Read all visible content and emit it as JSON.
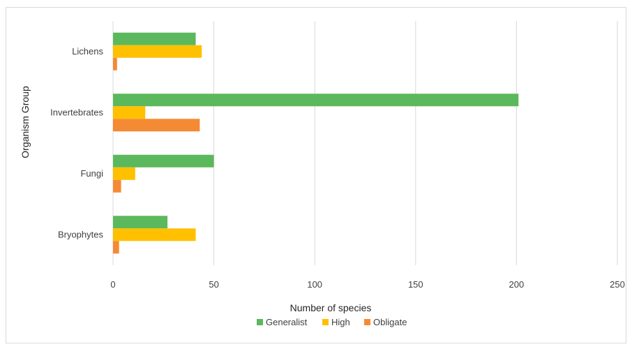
{
  "chart_data": {
    "type": "bar",
    "orientation": "horizontal",
    "categories": [
      "Bryophytes",
      "Fungi",
      "Invertebrates",
      "Lichens"
    ],
    "series": [
      {
        "name": "Generalist",
        "color": "#5cb85c",
        "values": [
          27,
          50,
          201,
          41
        ]
      },
      {
        "name": "High",
        "color": "#ffc000",
        "values": [
          41,
          11,
          16,
          44
        ]
      },
      {
        "name": "Obligate",
        "color": "#f58a34",
        "values": [
          3,
          4,
          43,
          2
        ]
      }
    ],
    "xlabel": "Number of species",
    "ylabel": "Organism Group",
    "xlim": [
      0,
      250
    ],
    "xticks": [
      "0",
      "50",
      "100",
      "150",
      "200",
      "250"
    ],
    "grid": "vertical",
    "legend": "bottom"
  }
}
